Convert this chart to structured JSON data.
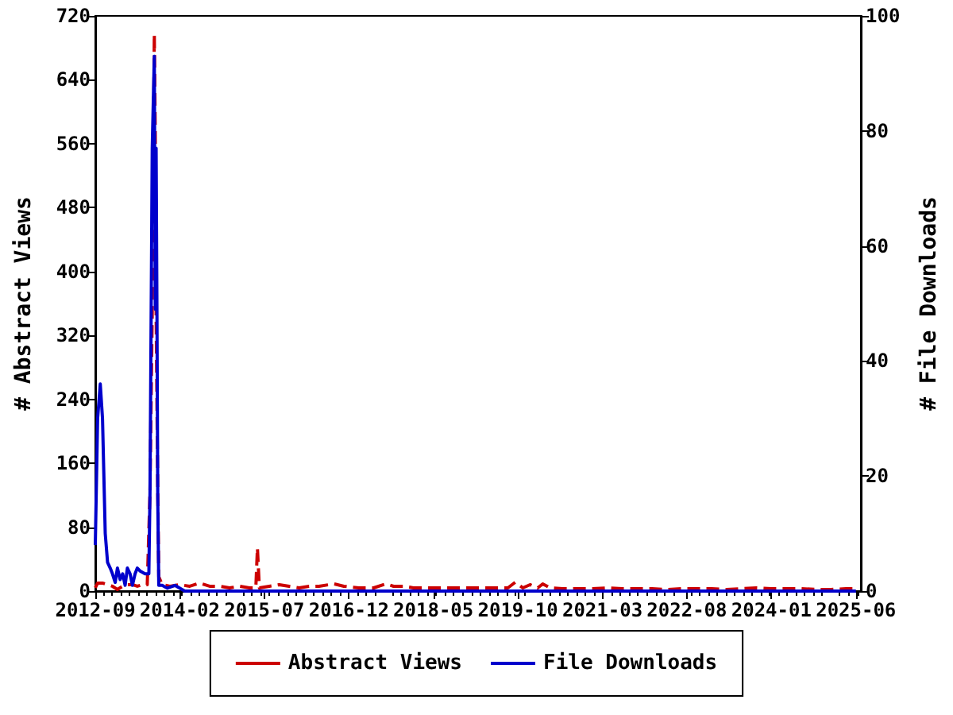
{
  "chart_data": {
    "type": "line",
    "ylabel": "# Abstract Views",
    "y2label": "# File Downloads",
    "xlim": [
      "2012-09",
      "2025-07"
    ],
    "xticks": [
      "2012-09",
      "2014-02",
      "2015-07",
      "2016-12",
      "2018-05",
      "2019-10",
      "2021-03",
      "2022-08",
      "2024-01",
      "2025-06"
    ],
    "ylim": [
      0,
      720
    ],
    "yticks": [
      0,
      80,
      160,
      240,
      320,
      400,
      480,
      560,
      640,
      720
    ],
    "y2lim": [
      0,
      100
    ],
    "y2ticks": [
      0,
      20,
      40,
      60,
      80,
      100
    ],
    "legend": "bottom",
    "marker": "none",
    "series": [
      {
        "name": "Abstract Views",
        "color": "#cc0000",
        "line_style": "dashed",
        "x": [
          "2012-09-01",
          "2012-09-15",
          "2012-10-15",
          "2012-11-15",
          "2012-12-15",
          "2013-01-15",
          "2013-02-15",
          "2013-03-15",
          "2013-04-15",
          "2013-05-15",
          "2013-06-15",
          "2013-07-15",
          "2013-08-01",
          "2013-08-15",
          "2013-08-28",
          "2013-09-03",
          "2013-09-08",
          "2013-09-13",
          "2013-09-18",
          "2013-09-24",
          "2013-10-15",
          "2013-12-01",
          "2014-02-01",
          "2014-04-01",
          "2014-06-01",
          "2014-08-01",
          "2014-10-01",
          "2014-12-01",
          "2015-02-01",
          "2015-04-01",
          "2015-05-10",
          "2015-05-20",
          "2015-06-01",
          "2015-08-01",
          "2015-10-01",
          "2015-12-01",
          "2016-02-01",
          "2016-04-01",
          "2016-06-01",
          "2016-09-01",
          "2016-11-01",
          "2017-02-01",
          "2017-05-01",
          "2017-07-15",
          "2017-09-01",
          "2017-11-01",
          "2018-01-01",
          "2018-04-01",
          "2018-07-01",
          "2018-10-01",
          "2019-01-01",
          "2019-04-01",
          "2019-08-01",
          "2019-09-15",
          "2019-11-01",
          "2019-12-15",
          "2020-02-01",
          "2020-03-01",
          "2020-04-15",
          "2020-07-01",
          "2020-10-01",
          "2021-01-01",
          "2021-04-01",
          "2021-07-01",
          "2021-10-01",
          "2022-01-01",
          "2022-04-01",
          "2022-07-01",
          "2022-10-01",
          "2023-01-01",
          "2023-04-01",
          "2023-07-01",
          "2023-10-01",
          "2024-01-01",
          "2024-04-01",
          "2024-07-01",
          "2024-10-01",
          "2025-01-01",
          "2025-04-01",
          "2025-06-01"
        ],
        "values": [
          4,
          10,
          10,
          8,
          6,
          2,
          6,
          8,
          8,
          6,
          8,
          8,
          123,
          348,
          697,
          571,
          348,
          348,
          123,
          18,
          8,
          6,
          8,
          6,
          10,
          6,
          6,
          4,
          6,
          4,
          4,
          54,
          4,
          6,
          8,
          6,
          4,
          6,
          6,
          9,
          6,
          4,
          4,
          9,
          6,
          6,
          4,
          4,
          4,
          4,
          4,
          4,
          4,
          11,
          4,
          8,
          4,
          9,
          4,
          3,
          3,
          3,
          4,
          3,
          3,
          3,
          2,
          3,
          3,
          3,
          2,
          3,
          4,
          3,
          3,
          3,
          2,
          2,
          3,
          3
        ]
      },
      {
        "name": "File Downloads",
        "color": "#0000cc",
        "line_style": "solid",
        "axis": "y2",
        "x": [
          "2012-09-01",
          "2012-09-15",
          "2012-10-01",
          "2012-10-15",
          "2012-11-01",
          "2012-11-15",
          "2012-12-01",
          "2012-12-15",
          "2013-01-01",
          "2013-01-15",
          "2013-02-01",
          "2013-02-15",
          "2013-03-01",
          "2013-03-15",
          "2013-04-01",
          "2013-04-15",
          "2013-05-01",
          "2013-05-15",
          "2013-06-01",
          "2013-07-01",
          "2013-07-25",
          "2013-08-01",
          "2013-08-15",
          "2013-08-28",
          "2013-09-03",
          "2013-09-08",
          "2013-09-13",
          "2013-09-18",
          "2013-09-24",
          "2013-10-15",
          "2013-11-15",
          "2014-01-01",
          "2014-03-01",
          "2014-06-01",
          "2015-01-01",
          "2016-01-01",
          "2017-01-01",
          "2018-01-01",
          "2019-01-01",
          "2020-01-01",
          "2021-01-01",
          "2022-01-01",
          "2023-01-01",
          "2024-01-01",
          "2025-06-01"
        ],
        "values": [
          8,
          30,
          36,
          30,
          10,
          5,
          4,
          3,
          1.5,
          4,
          2,
          3,
          1,
          4,
          3,
          1,
          3,
          4,
          3.5,
          3,
          3,
          17,
          77,
          93,
          49,
          77,
          49,
          16,
          1,
          1,
          0.5,
          1,
          0,
          0,
          0,
          0,
          0,
          0,
          0,
          0,
          0,
          0,
          0,
          0,
          0
        ]
      }
    ]
  }
}
